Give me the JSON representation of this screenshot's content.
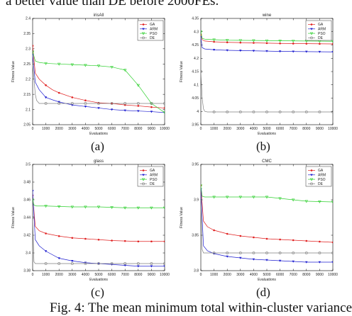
{
  "caption_top": "a better value than DE before 2000FEs.",
  "caption_bottom": "Fig. 4: The mean minimum total within-cluster variance",
  "sublabels": [
    "(a)",
    "(b)",
    "(c)",
    "(d)"
  ],
  "series_colors": {
    "GA": "#e02020",
    "ARM": "#2020d0",
    "PSO": "#30d030",
    "DE": "#808080"
  },
  "chart_data": [
    {
      "type": "line",
      "title": "irisAll",
      "xlabel": "Evaluations",
      "ylabel": "Fitness Value",
      "xlim": [
        0,
        10000
      ],
      "ylim": [
        2.05,
        2.4
      ],
      "xticks": [
        0,
        1000,
        2000,
        3000,
        4000,
        5000,
        6000,
        7000,
        8000,
        9000,
        10000
      ],
      "yticks": [
        2.05,
        2.1,
        2.15,
        2.2,
        2.25,
        2.3,
        2.35,
        2.4
      ],
      "ytick_labels": [
        "2.05",
        "2.1",
        "2.15",
        "2.2",
        "2.25",
        "2.3",
        "2.35",
        "2.4"
      ],
      "legend": "top-right",
      "series": [
        {
          "name": "GA",
          "x": [
            0,
            200,
            500,
            1000,
            1500,
            2000,
            3000,
            4000,
            5000,
            6000,
            7000,
            8000,
            9000,
            10000
          ],
          "y": [
            2.31,
            2.22,
            2.2,
            2.18,
            2.165,
            2.155,
            2.14,
            2.13,
            2.122,
            2.12,
            2.115,
            2.112,
            2.108,
            2.105
          ]
        },
        {
          "name": "ARM",
          "x": [
            0,
            200,
            500,
            1000,
            1500,
            2000,
            3000,
            4000,
            5000,
            6000,
            7000,
            8000,
            9000,
            10000
          ],
          "y": [
            2.28,
            2.19,
            2.165,
            2.14,
            2.132,
            2.125,
            2.115,
            2.11,
            2.105,
            2.1,
            2.097,
            2.095,
            2.093,
            2.09
          ]
        },
        {
          "name": "PSO",
          "x": [
            0,
            200,
            500,
            1000,
            2000,
            3000,
            4000,
            5000,
            6000,
            6500,
            7000,
            8000,
            9000,
            10000
          ],
          "y": [
            2.29,
            2.26,
            2.255,
            2.252,
            2.25,
            2.248,
            2.246,
            2.244,
            2.24,
            2.235,
            2.23,
            2.18,
            2.12,
            2.09
          ]
        },
        {
          "name": "DE",
          "x": [
            0,
            100,
            200,
            300,
            500,
            1000,
            2000,
            3000,
            4000,
            5000,
            6000,
            7000,
            8000,
            9000,
            10000
          ],
          "y": [
            2.25,
            2.2,
            2.15,
            2.13,
            2.12,
            2.12,
            2.12,
            2.12,
            2.12,
            2.12,
            2.12,
            2.12,
            2.12,
            2.12,
            2.12
          ]
        }
      ]
    },
    {
      "type": "line",
      "title": "wine",
      "xlabel": "Evaluations",
      "ylabel": "Fitness Value",
      "xlim": [
        0,
        10000
      ],
      "ylim": [
        3.95,
        4.35
      ],
      "xticks": [
        0,
        1000,
        2000,
        3000,
        4000,
        5000,
        6000,
        7000,
        8000,
        9000,
        10000
      ],
      "yticks": [
        3.95,
        4.0,
        4.05,
        4.1,
        4.15,
        4.2,
        4.25,
        4.3,
        4.35
      ],
      "ytick_labels": [
        "3.95",
        "4",
        "4.05",
        "4.1",
        "4.15",
        "4.2",
        "4.25",
        "4.3",
        "4.35"
      ],
      "legend": "top-right",
      "series": [
        {
          "name": "GA",
          "x": [
            0,
            100,
            300,
            1000,
            2000,
            4000,
            6000,
            8000,
            10000
          ],
          "y": [
            4.29,
            4.27,
            4.265,
            4.262,
            4.26,
            4.258,
            4.256,
            4.255,
            4.254
          ]
        },
        {
          "name": "ARM",
          "x": [
            0,
            100,
            300,
            1000,
            2000,
            4000,
            6000,
            8000,
            10000
          ],
          "y": [
            4.28,
            4.24,
            4.235,
            4.232,
            4.23,
            4.228,
            4.226,
            4.225,
            4.224
          ]
        },
        {
          "name": "PSO",
          "x": [
            0,
            100,
            300,
            1000,
            2000,
            4000,
            6000,
            8000,
            10000
          ],
          "y": [
            4.3,
            4.275,
            4.272,
            4.27,
            4.268,
            4.267,
            4.266,
            4.265,
            4.264
          ]
        },
        {
          "name": "DE",
          "x": [
            0,
            100,
            200,
            300,
            500,
            1000,
            2000,
            4000,
            6000,
            8000,
            10000
          ],
          "y": [
            4.15,
            4.05,
            4.01,
            4.0,
            3.998,
            3.998,
            3.998,
            3.998,
            3.998,
            3.998,
            3.998
          ]
        }
      ]
    },
    {
      "type": "line",
      "title": "glass",
      "xlabel": "Evaluations",
      "ylabel": "Fitness Value",
      "xlim": [
        0,
        10000
      ],
      "ylim": [
        3.38,
        3.5
      ],
      "xticks": [
        0,
        1000,
        2000,
        3000,
        4000,
        5000,
        6000,
        7000,
        8000,
        9000,
        10000
      ],
      "yticks": [
        3.38,
        3.4,
        3.42,
        3.44,
        3.46,
        3.48,
        3.5
      ],
      "ytick_labels": [
        "3.38",
        "3.4",
        "3.42",
        "3.44",
        "3.46",
        "3.48",
        "3.5"
      ],
      "legend": "top-right",
      "series": [
        {
          "name": "GA",
          "x": [
            0,
            200,
            500,
            1000,
            2000,
            3000,
            4000,
            5000,
            6000,
            8000,
            10000
          ],
          "y": [
            3.465,
            3.43,
            3.425,
            3.422,
            3.419,
            3.417,
            3.416,
            3.415,
            3.414,
            3.413,
            3.413
          ]
        },
        {
          "name": "ARM",
          "x": [
            0,
            200,
            500,
            1000,
            2000,
            3000,
            4000,
            5000,
            6000,
            7000,
            8000,
            9000,
            10000
          ],
          "y": [
            3.47,
            3.415,
            3.408,
            3.402,
            3.394,
            3.391,
            3.389,
            3.388,
            3.387,
            3.386,
            3.385,
            3.385,
            3.385
          ]
        },
        {
          "name": "PSO",
          "x": [
            0,
            100,
            300,
            1000,
            3000,
            5000,
            7000,
            9000,
            10000
          ],
          "y": [
            3.46,
            3.454,
            3.453,
            3.453,
            3.452,
            3.452,
            3.451,
            3.451,
            3.451
          ]
        },
        {
          "name": "DE",
          "x": [
            0,
            100,
            200,
            400,
            1000,
            3000,
            5000,
            7000,
            9000,
            10000
          ],
          "y": [
            3.44,
            3.39,
            3.388,
            3.388,
            3.388,
            3.388,
            3.388,
            3.388,
            3.388,
            3.388
          ]
        }
      ]
    },
    {
      "type": "line",
      "title": "CMC",
      "xlabel": "Evaluations",
      "ylabel": "Fitness Value",
      "xlim": [
        0,
        10000
      ],
      "ylim": [
        3.8,
        3.95
      ],
      "xticks": [
        0,
        1000,
        2000,
        3000,
        4000,
        5000,
        6000,
        7000,
        8000,
        9000,
        10000
      ],
      "yticks": [
        3.8,
        3.85,
        3.9,
        3.95
      ],
      "ytick_labels": [
        "3.8",
        "3.85",
        "3.9",
        "3.95"
      ],
      "legend": "top-right",
      "series": [
        {
          "name": "GA",
          "x": [
            0,
            200,
            500,
            1000,
            2000,
            3000,
            4000,
            5000,
            6000,
            7000,
            8000,
            9000,
            10000
          ],
          "y": [
            3.92,
            3.87,
            3.862,
            3.857,
            3.852,
            3.849,
            3.847,
            3.845,
            3.844,
            3.843,
            3.842,
            3.841,
            3.84
          ]
        },
        {
          "name": "ARM",
          "x": [
            0,
            200,
            500,
            1000,
            2000,
            3000,
            4000,
            5000,
            6000,
            7000,
            8000,
            9000,
            10000
          ],
          "y": [
            3.915,
            3.835,
            3.828,
            3.824,
            3.82,
            3.818,
            3.816,
            3.815,
            3.814,
            3.813,
            3.812,
            3.812,
            3.812
          ]
        },
        {
          "name": "PSO",
          "x": [
            0,
            100,
            300,
            1000,
            3000,
            5000,
            6000,
            7000,
            8000,
            10000
          ],
          "y": [
            3.92,
            3.905,
            3.904,
            3.904,
            3.904,
            3.904,
            3.902,
            3.9,
            3.898,
            3.897
          ]
        },
        {
          "name": "DE",
          "x": [
            0,
            100,
            200,
            400,
            1000,
            3000,
            5000,
            7000,
            9000,
            10000
          ],
          "y": [
            3.9,
            3.83,
            3.825,
            3.825,
            3.825,
            3.825,
            3.825,
            3.825,
            3.825,
            3.825
          ]
        }
      ]
    }
  ]
}
